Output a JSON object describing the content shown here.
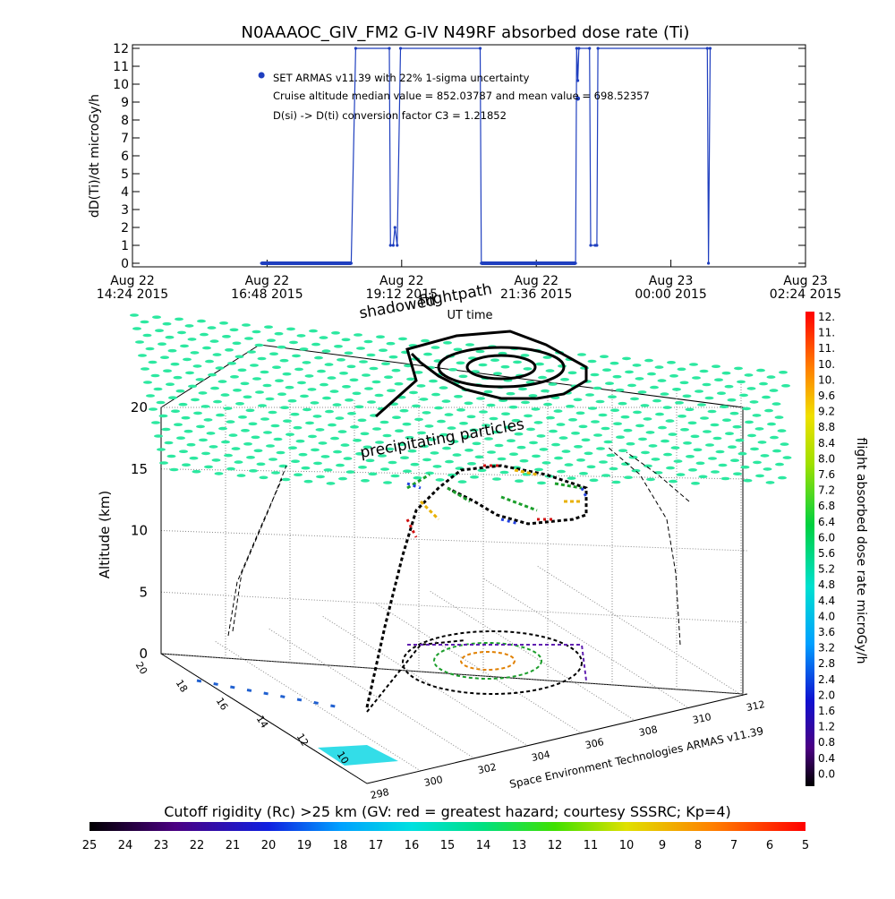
{
  "chart_data": [
    {
      "type": "line",
      "title": "N0AAAOC_GIV_FM2  G-IV    N49RF  absorbed dose rate (Ti)",
      "ylabel": "dD(Ti)/dt microGy/h",
      "xlabel": "UT time",
      "ylim": [
        0,
        12
      ],
      "yticks": [
        "0",
        "1",
        "2",
        "3",
        "4",
        "5",
        "6",
        "7",
        "8",
        "9",
        "10",
        "11",
        "12"
      ],
      "xticks": [
        {
          "date": "Aug 22",
          "time": "14:24 2015"
        },
        {
          "date": "Aug 22",
          "time": "16:48 2015"
        },
        {
          "date": "Aug 22",
          "time": "19:12 2015"
        },
        {
          "date": "Aug 22",
          "time": "21:36 2015"
        },
        {
          "date": "Aug 23",
          "time": "00:00 2015"
        },
        {
          "date": "Aug 23",
          "time": "02:24 2015"
        }
      ],
      "xlim_hours": [
        14.4,
        26.4
      ],
      "annotations": [
        "SET ARMAS v11.39 with 22% 1-sigma uncertainty",
        "Cruise altitude median value = 852.03787 and mean value = 698.52357",
        "D(si) -> D(ti) conversion factor C3 = 1.21852"
      ],
      "series": [
        {
          "color": "#1f3fbf",
          "points": [
            [
              16.7,
              0
            ],
            [
              17.1,
              0
            ],
            [
              17.5,
              0
            ],
            [
              18.0,
              0
            ],
            [
              18.3,
              0
            ],
            [
              18.38,
              12
            ],
            [
              18.98,
              12
            ],
            [
              19.0,
              1
            ],
            [
              19.05,
              1
            ],
            [
              19.08,
              2
            ],
            [
              19.12,
              1
            ],
            [
              19.18,
              12
            ],
            [
              20.6,
              12
            ],
            [
              20.62,
              0
            ],
            [
              21.0,
              0
            ],
            [
              21.5,
              0
            ],
            [
              22.0,
              0
            ],
            [
              22.3,
              0
            ],
            [
              22.32,
              12
            ],
            [
              22.34,
              10.2
            ],
            [
              22.36,
              12
            ],
            [
              22.55,
              12
            ],
            [
              22.57,
              1
            ],
            [
              22.65,
              1
            ],
            [
              22.68,
              1
            ],
            [
              22.7,
              12
            ],
            [
              24.65,
              12
            ],
            [
              24.67,
              0
            ],
            [
              24.7,
              12
            ]
          ]
        }
      ]
    },
    {
      "type": "scatter",
      "subtype": "3d-flight-track",
      "zlabel": "Altitude (km)",
      "zticks": [
        "0",
        "5",
        "10",
        "15",
        "20"
      ],
      "xticks": [
        "298",
        "300",
        "302",
        "304",
        "306",
        "308",
        "310",
        "312"
      ],
      "yticks": [
        "10",
        "12",
        "14",
        "16",
        "18",
        "20"
      ],
      "labels": {
        "flightpath": "flightpath",
        "shadowed": "shadowed",
        "precip": "precipitating particles",
        "credit": "Space Environment Technologies ARMAS v11.39"
      },
      "colorbar": {
        "label": "flight absorbed dose rate microGy/h",
        "ticks": [
          "12.",
          "11.",
          "11.",
          "10.",
          "10.",
          "9.6",
          "9.2",
          "8.8",
          "8.4",
          "8.0",
          "7.6",
          "7.2",
          "6.8",
          "6.4",
          "6.0",
          "5.6",
          "5.2",
          "4.8",
          "4.4",
          "4.0",
          "3.6",
          "3.2",
          "2.8",
          "2.4",
          "2.0",
          "1.6",
          "1.2",
          "0.8",
          "0.4",
          "0.0"
        ]
      }
    }
  ],
  "bottom_colorbar": {
    "title": "Cutoff rigidity (Rc) >25 km (GV: red = greatest hazard; courtesy SSSRC; Kp=4)",
    "ticks": [
      "25",
      "24",
      "23",
      "22",
      "21",
      "20",
      "19",
      "18",
      "17",
      "16",
      "15",
      "14",
      "13",
      "12",
      "11",
      "10",
      "9",
      "8",
      "7",
      "6",
      "5"
    ]
  }
}
